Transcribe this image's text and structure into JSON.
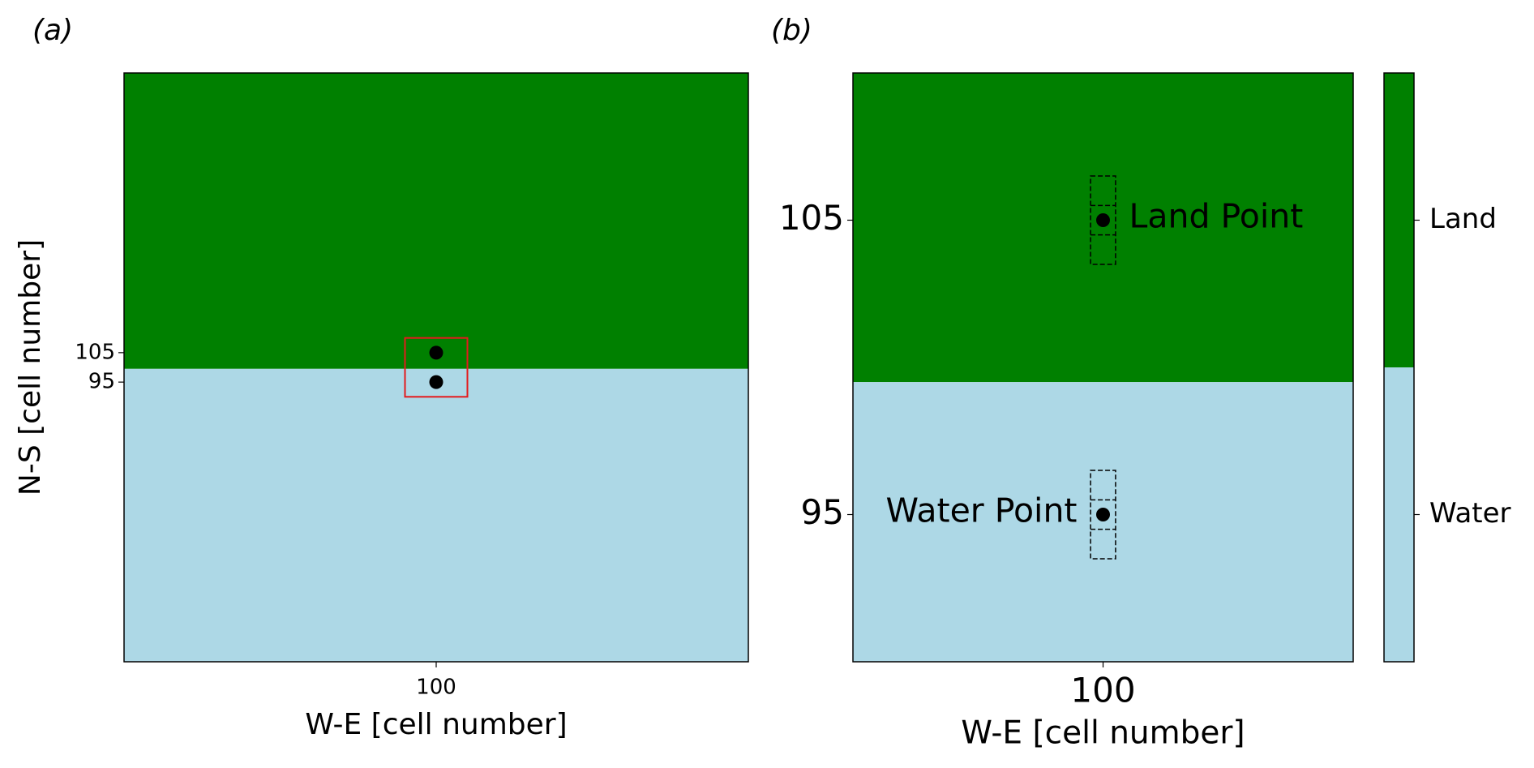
{
  "chart_data": [
    {
      "type": "heatmap",
      "panel_label": "(a)",
      "xlabel": "W-E [cell number]",
      "ylabel": "N-S [cell number]",
      "xlim": [
        0,
        200
      ],
      "ylim": [
        0,
        200
      ],
      "xticks": [
        100
      ],
      "yticks": [
        95,
        105
      ],
      "boundary": 99.5,
      "points": {
        "x": [
          100,
          100
        ],
        "y": [
          105,
          95
        ]
      },
      "highlight_box": {
        "x": [
          90,
          110
        ],
        "y": [
          90,
          110
        ],
        "color": "#e41a1c"
      }
    },
    {
      "type": "heatmap",
      "panel_label": "(b)",
      "xlabel": "W-E [cell number]",
      "xlim": [
        90,
        110
      ],
      "ylim": [
        90,
        110
      ],
      "xticks": [
        100
      ],
      "yticks": [
        95,
        105
      ],
      "boundary": 99.5,
      "points": {
        "x": [
          100,
          100
        ],
        "y": [
          105,
          95
        ],
        "labels": [
          "Land Point",
          "Water Point"
        ]
      }
    }
  ],
  "colorbar": {
    "categories": [
      "Land",
      "Water"
    ],
    "colors": [
      "#008000",
      "#add8e6"
    ]
  }
}
